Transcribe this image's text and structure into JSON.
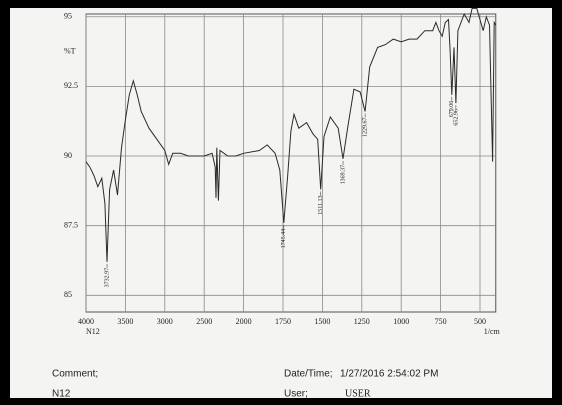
{
  "chart_data": {
    "type": "line",
    "y_label": "%T",
    "x_label": "1/cm",
    "x_sublabel": "N12",
    "xlim": [
      4000,
      400
    ],
    "xticks": [
      4000,
      3500,
      3000,
      2500,
      2000,
      1750,
      1500,
      1250,
      1000,
      750,
      500
    ],
    "ylim": [
      84.4,
      95.1
    ],
    "yticks": [
      85,
      87.5,
      90,
      92.5,
      95
    ],
    "grid": true,
    "series": [
      {
        "color": "#2a2a2a",
        "x": [
          4000,
          3950,
          3900,
          3850,
          3800,
          3760,
          3733,
          3700,
          3650,
          3600,
          3550,
          3500,
          3450,
          3400,
          3350,
          3300,
          3200,
          3100,
          3000,
          2950,
          2900,
          2800,
          2700,
          2600,
          2500,
          2400,
          2360,
          2350,
          2340,
          2320,
          2300,
          2200,
          2100,
          2000,
          1900,
          1850,
          1800,
          1770,
          1745,
          1720,
          1700,
          1680,
          1650,
          1600,
          1560,
          1530,
          1511,
          1490,
          1450,
          1400,
          1369,
          1340,
          1300,
          1260,
          1229,
          1200,
          1150,
          1100,
          1050,
          1000,
          950,
          900,
          850,
          800,
          780,
          760,
          740,
          720,
          700,
          690,
          679,
          665,
          653,
          640,
          600,
          570,
          550,
          520,
          500,
          480,
          460,
          440,
          420,
          410,
          400
        ],
        "values": [
          89.8,
          89.6,
          89.3,
          88.9,
          89.2,
          88.3,
          86.2,
          88.8,
          89.5,
          88.6,
          90.3,
          91.3,
          92.2,
          92.7,
          92.2,
          91.6,
          91.0,
          90.6,
          90.2,
          89.7,
          90.1,
          90.1,
          90.0,
          90.0,
          90.0,
          90.1,
          89.6,
          88.5,
          90.3,
          88.4,
          90.2,
          90.0,
          90.0,
          90.1,
          90.2,
          90.4,
          90.1,
          89.5,
          87.6,
          89.3,
          90.9,
          91.5,
          91.0,
          91.2,
          90.8,
          90.6,
          88.8,
          90.7,
          91.4,
          91.0,
          89.9,
          91.0,
          92.4,
          92.3,
          91.6,
          93.2,
          93.9,
          94.0,
          94.2,
          94.1,
          94.2,
          94.2,
          94.5,
          94.5,
          94.8,
          94.5,
          94.3,
          94.8,
          94.9,
          93.8,
          92.2,
          93.9,
          91.9,
          94.5,
          95.1,
          94.8,
          95.3,
          95.3,
          94.9,
          94.5,
          95.0,
          94.7,
          89.8,
          94.8,
          94.7
        ]
      }
    ],
    "annotations": [
      {
        "label": "3732.97",
        "x": 3733
      },
      {
        "label": "1745.44",
        "x": 1745
      },
      {
        "label": "1511.13",
        "x": 1511
      },
      {
        "label": "1369.37",
        "x": 1369
      },
      {
        "label": "1229.67",
        "x": 1229
      },
      {
        "label": "679.06",
        "x": 679
      },
      {
        "label": "652.96",
        "x": 653
      }
    ]
  },
  "footer": {
    "comment_label": "Comment;",
    "comment": "N12",
    "date_label": "Date/Time;",
    "date": "1/27/2016 2:54:02 PM",
    "user_label": "User;",
    "user": "USER"
  }
}
